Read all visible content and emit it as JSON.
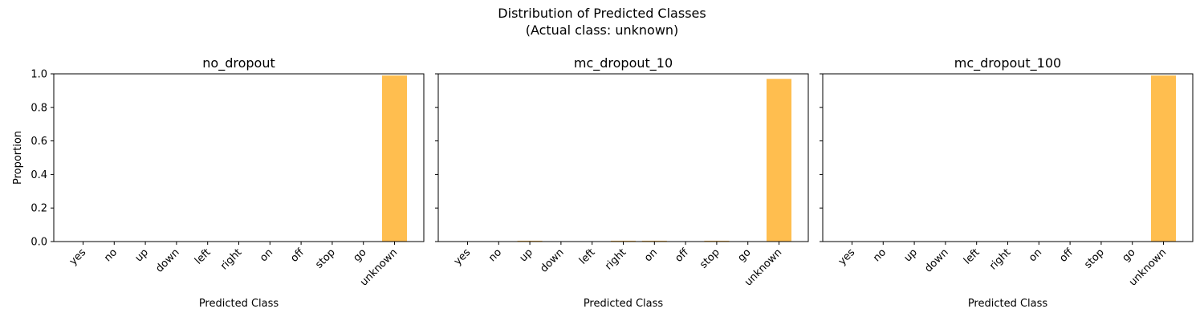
{
  "figure": {
    "title_line1": "Distribution of Predicted Classes",
    "title_line2": "(Actual class: unknown)"
  },
  "chart_data": [
    {
      "type": "bar",
      "title": "no_dropout",
      "xlabel": "Predicted Class",
      "ylabel": "Proportion",
      "ylim": [
        0,
        1.0
      ],
      "yticks": [
        "0.0",
        "0.2",
        "0.4",
        "0.6",
        "0.8",
        "1.0"
      ],
      "yticks_labelled": true,
      "grid": false,
      "bar_color": "#FFBE4F",
      "categories": [
        "yes",
        "no",
        "up",
        "down",
        "left",
        "right",
        "on",
        "off",
        "stop",
        "go",
        "unknown"
      ],
      "values": [
        0,
        0,
        0,
        0,
        0,
        0,
        0,
        0,
        0,
        0,
        0.99
      ]
    },
    {
      "type": "bar",
      "title": "mc_dropout_10",
      "xlabel": "Predicted Class",
      "ylabel": "",
      "ylim": [
        0,
        1.0
      ],
      "yticks": [
        "0.0",
        "0.2",
        "0.4",
        "0.6",
        "0.8",
        "1.0"
      ],
      "yticks_labelled": false,
      "grid": false,
      "bar_color": "#FFBE4F",
      "categories": [
        "yes",
        "no",
        "up",
        "down",
        "left",
        "right",
        "on",
        "off",
        "stop",
        "go",
        "unknown"
      ],
      "values": [
        0,
        0,
        0.005,
        0,
        0,
        0.005,
        0.005,
        0,
        0.005,
        0,
        0.97
      ]
    },
    {
      "type": "bar",
      "title": "mc_dropout_100",
      "xlabel": "Predicted Class",
      "ylabel": "",
      "ylim": [
        0,
        1.0
      ],
      "yticks": [
        "0.0",
        "0.2",
        "0.4",
        "0.6",
        "0.8",
        "1.0"
      ],
      "yticks_labelled": false,
      "grid": false,
      "bar_color": "#FFBE4F",
      "categories": [
        "yes",
        "no",
        "up",
        "down",
        "left",
        "right",
        "on",
        "off",
        "stop",
        "go",
        "unknown"
      ],
      "values": [
        0,
        0,
        0,
        0,
        0,
        0,
        0,
        0,
        0,
        0,
        0.99
      ]
    }
  ]
}
